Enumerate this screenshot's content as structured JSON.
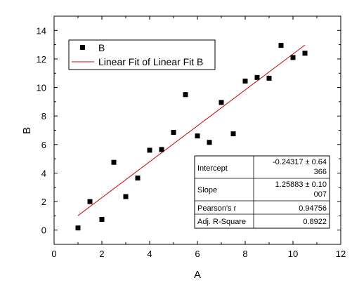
{
  "chart_data": {
    "type": "scatter",
    "xlabel": "A",
    "ylabel": "B",
    "xlim": [
      0,
      12
    ],
    "ylim": [
      -1,
      15
    ],
    "xticks": [
      0,
      2,
      4,
      6,
      8,
      10,
      12
    ],
    "yticks": [
      0,
      2,
      4,
      6,
      8,
      10,
      12,
      14
    ],
    "xtick_labels": [
      "0",
      "2",
      "4",
      "6",
      "8",
      "10",
      "12"
    ],
    "ytick_labels": [
      "0",
      "2",
      "4",
      "6",
      "8",
      "10",
      "12",
      "14"
    ],
    "grid": false,
    "legend_position": "top-left",
    "series": [
      {
        "name": "B",
        "kind": "scatter",
        "marker": "square",
        "color": "#000000",
        "x": [
          1,
          1.5,
          2,
          2.5,
          3,
          3.5,
          4,
          4.5,
          5,
          5.5,
          6,
          6.5,
          7,
          7.5,
          8,
          8.5,
          9,
          9.5,
          10,
          10.5
        ],
        "y": [
          0.15,
          2.0,
          0.75,
          4.75,
          2.35,
          3.65,
          5.6,
          5.65,
          6.85,
          9.5,
          6.6,
          6.15,
          8.95,
          6.75,
          10.45,
          10.7,
          10.65,
          12.95,
          12.1,
          12.4
        ]
      },
      {
        "name": "Linear Fit of Linear Fit B",
        "kind": "line",
        "color": "#cc0000",
        "x": [
          1,
          10.5
        ],
        "y": [
          1.016,
          12.975
        ]
      }
    ],
    "stats_table": {
      "rows": [
        {
          "label": "Intercept",
          "value_line1": "-0.24317 ± 0.64",
          "value_line2": "366"
        },
        {
          "label": "Slope",
          "value_line1": "1.25883 ± 0.10",
          "value_line2": "007"
        },
        {
          "label": "Pearson's r",
          "value_line1": "0.94756",
          "value_line2": ""
        },
        {
          "label": "Adj. R-Square",
          "value_line1": "0.8922",
          "value_line2": ""
        }
      ]
    }
  }
}
